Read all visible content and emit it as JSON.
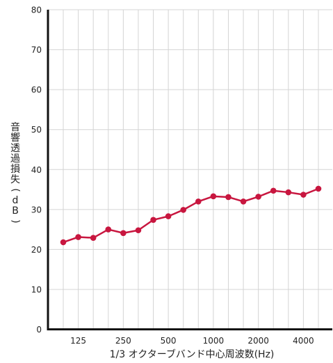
{
  "chart_data": {
    "type": "line",
    "title": "",
    "xlabel": "1/3 オクターブバンド中心周波数(Hz)",
    "ylabel": "音響透過損失(dB)",
    "ylim": [
      0,
      80
    ],
    "yticks": [
      "0",
      "10",
      "20",
      "30",
      "40",
      "50",
      "60",
      "70",
      "80"
    ],
    "xticklabels": [
      "125",
      "250",
      "500",
      "1000",
      "2000",
      "4000"
    ],
    "x": [
      "100",
      "125",
      "160",
      "200",
      "250",
      "315",
      "400",
      "500",
      "630",
      "800",
      "1000",
      "1250",
      "1600",
      "2000",
      "2500",
      "3150",
      "4000",
      "5000"
    ],
    "series": [
      {
        "values": [
          21.8,
          23.1,
          22.9,
          25.0,
          24.1,
          24.8,
          27.4,
          28.3,
          29.9,
          32.0,
          33.3,
          33.1,
          32.0,
          33.2,
          34.7,
          34.3,
          33.7,
          35.2
        ]
      }
    ],
    "grid": true,
    "legend": "none",
    "colors": {
      "line": "#c8163f",
      "axis": "#111111",
      "grid": "#d4d4d4"
    }
  }
}
